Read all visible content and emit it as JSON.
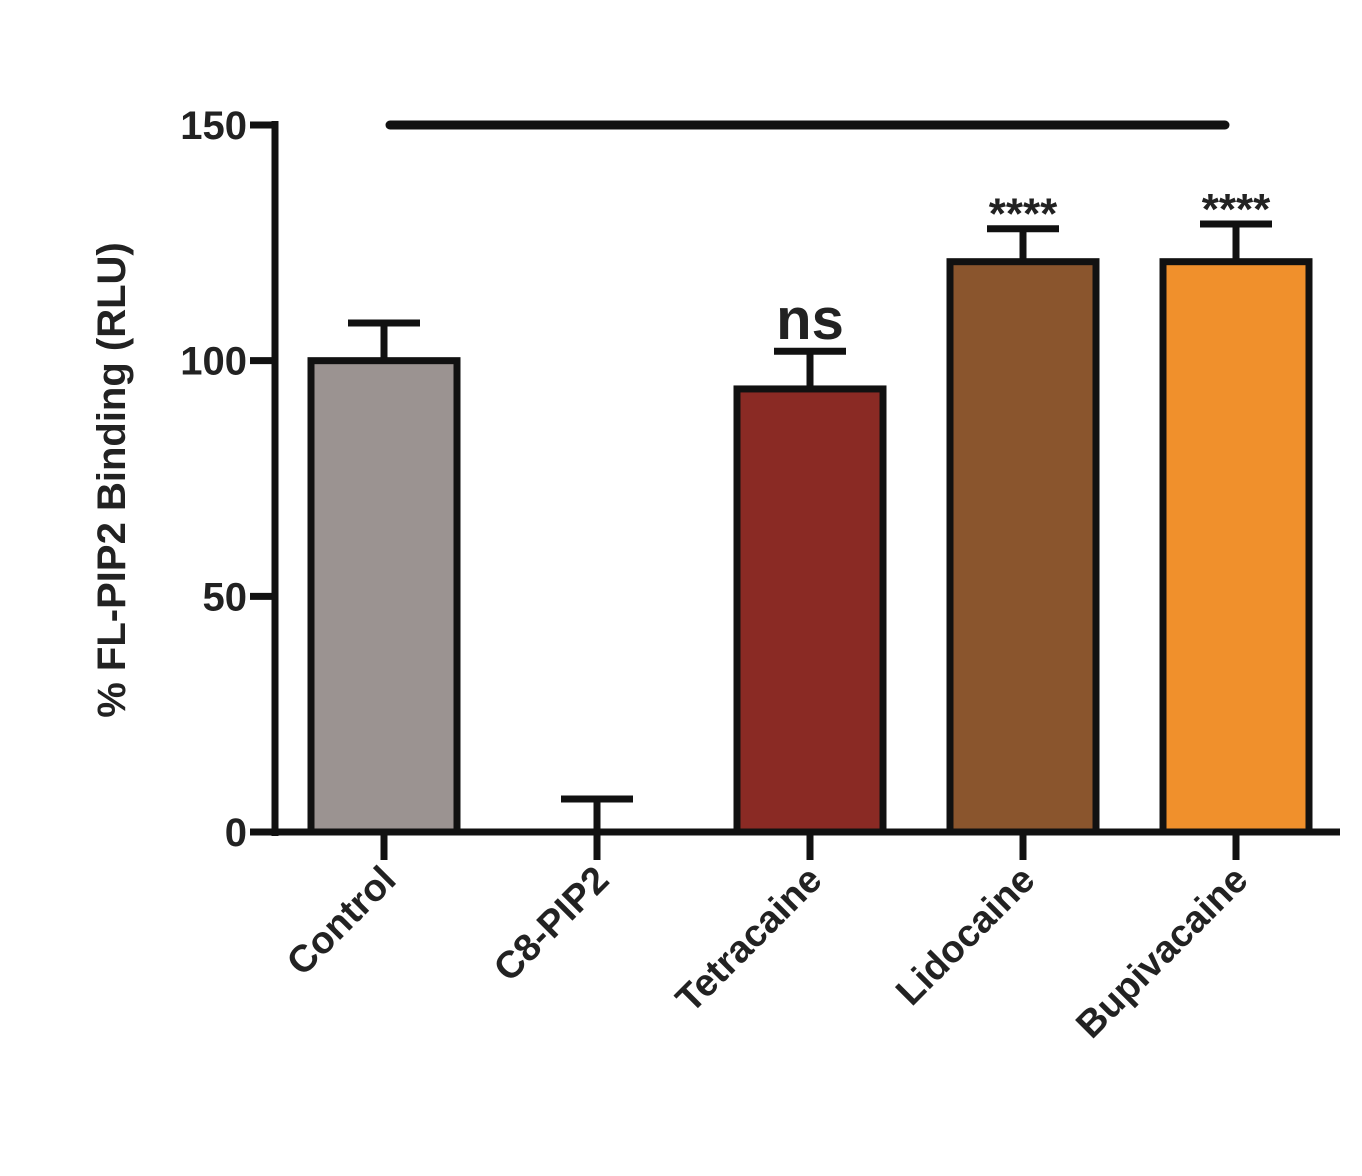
{
  "chart_data": {
    "type": "bar",
    "y_label": "% FL-PIP2 Binding (RLU)",
    "categories": [
      "Control",
      "C8-PIP2",
      "Tetracaine",
      "Lidocaine",
      "Bupivacaine"
    ],
    "values": [
      100,
      0,
      94,
      121,
      121
    ],
    "errors": [
      8,
      7,
      8,
      7,
      8
    ],
    "colors": [
      "#9b9391",
      "#9b9391",
      "#8a2a24",
      "#8a552d",
      "#f0902c"
    ],
    "annotations": [
      null,
      null,
      "ns",
      "****",
      "****"
    ],
    "ylim": [
      0,
      150
    ],
    "yticks": [
      0,
      50,
      100,
      150
    ]
  }
}
